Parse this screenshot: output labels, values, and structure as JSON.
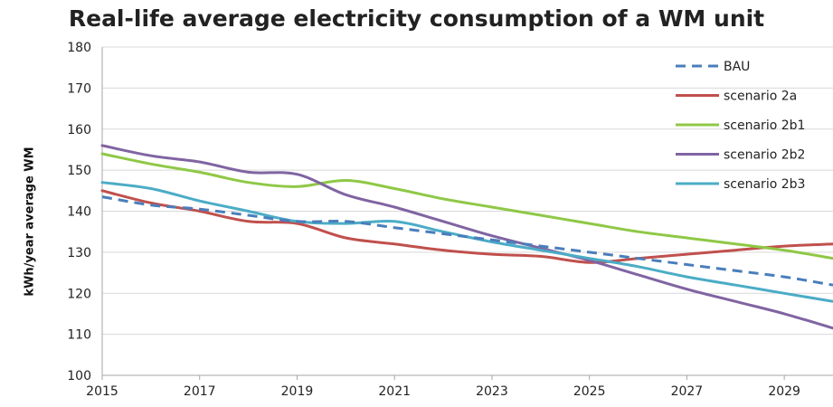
{
  "chart_data": {
    "type": "line",
    "title": "Real-life average electricity consumption of a WM unit",
    "xlabel": "",
    "ylabel": "kWh/year average WM",
    "xlim": [
      2015,
      2030
    ],
    "ylim": [
      100,
      180
    ],
    "x_ticks": [
      "2015",
      "2017",
      "2019",
      "2021",
      "2023",
      "2025",
      "2027",
      "2029"
    ],
    "y_ticks": [
      "100",
      "110",
      "120",
      "130",
      "140",
      "150",
      "160",
      "170",
      "180"
    ],
    "grid": "horizontal",
    "legend_position": "top-right",
    "series": [
      {
        "name": "BAU",
        "color": "#4a7ebb",
        "dashed": true,
        "points": [
          [
            2015,
            143.5
          ],
          [
            2016,
            141.5
          ],
          [
            2017,
            140.5
          ],
          [
            2018,
            139
          ],
          [
            2019,
            137.5
          ],
          [
            2020,
            137.5
          ],
          [
            2021,
            136
          ],
          [
            2022,
            134.5
          ],
          [
            2023,
            133
          ],
          [
            2024,
            131.5
          ],
          [
            2025,
            130
          ],
          [
            2026,
            128.5
          ],
          [
            2027,
            127
          ],
          [
            2028,
            125.5
          ],
          [
            2029,
            124
          ],
          [
            2030,
            122
          ]
        ]
      },
      {
        "name": "scenario 2a",
        "color": "#c0504d",
        "dashed": false,
        "points": [
          [
            2015,
            145
          ],
          [
            2016,
            142
          ],
          [
            2017,
            140
          ],
          [
            2018,
            137.5
          ],
          [
            2019,
            137
          ],
          [
            2020,
            133.5
          ],
          [
            2021,
            132
          ],
          [
            2022,
            130.5
          ],
          [
            2023,
            129.5
          ],
          [
            2024,
            129
          ],
          [
            2025,
            127.5
          ],
          [
            2026,
            128.5
          ],
          [
            2027,
            129.5
          ],
          [
            2028,
            130.5
          ],
          [
            2029,
            131.5
          ],
          [
            2030,
            132
          ]
        ]
      },
      {
        "name": "scenario 2b1",
        "color": "#8fc846",
        "dashed": false,
        "points": [
          [
            2015,
            154
          ],
          [
            2016,
            151.5
          ],
          [
            2017,
            149.5
          ],
          [
            2018,
            147
          ],
          [
            2019,
            146
          ],
          [
            2020,
            147.5
          ],
          [
            2021,
            145.5
          ],
          [
            2022,
            143
          ],
          [
            2023,
            141
          ],
          [
            2024,
            139
          ],
          [
            2025,
            137
          ],
          [
            2026,
            135
          ],
          [
            2027,
            133.5
          ],
          [
            2028,
            132
          ],
          [
            2029,
            130.5
          ],
          [
            2030,
            128.5
          ]
        ]
      },
      {
        "name": "scenario 2b2",
        "color": "#8064a2",
        "dashed": false,
        "points": [
          [
            2015,
            156
          ],
          [
            2016,
            153.5
          ],
          [
            2017,
            152
          ],
          [
            2018,
            149.5
          ],
          [
            2019,
            149
          ],
          [
            2020,
            144
          ],
          [
            2021,
            141
          ],
          [
            2022,
            137.5
          ],
          [
            2023,
            134
          ],
          [
            2024,
            131
          ],
          [
            2025,
            128
          ],
          [
            2026,
            124.5
          ],
          [
            2027,
            121
          ],
          [
            2028,
            118
          ],
          [
            2029,
            115
          ],
          [
            2030,
            111.5
          ]
        ]
      },
      {
        "name": "scenario 2b3",
        "color": "#4bacc6",
        "dashed": false,
        "points": [
          [
            2015,
            147
          ],
          [
            2016,
            145.5
          ],
          [
            2017,
            142.5
          ],
          [
            2018,
            140
          ],
          [
            2019,
            137.5
          ],
          [
            2020,
            137
          ],
          [
            2021,
            137.5
          ],
          [
            2022,
            135
          ],
          [
            2023,
            132.5
          ],
          [
            2024,
            130.5
          ],
          [
            2025,
            128.5
          ],
          [
            2026,
            126.5
          ],
          [
            2027,
            124
          ],
          [
            2028,
            122
          ],
          [
            2029,
            120
          ],
          [
            2030,
            118
          ]
        ]
      }
    ]
  }
}
